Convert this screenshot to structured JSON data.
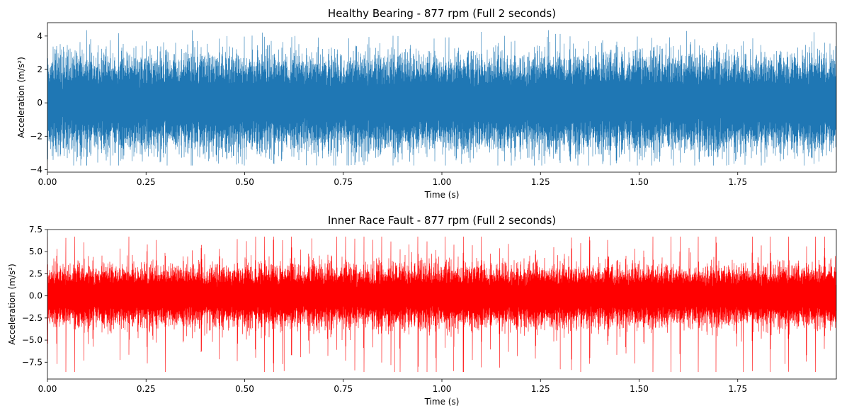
{
  "chart_data": [
    {
      "type": "line",
      "title": "Healthy Bearing - 877 rpm (Full 2 seconds)",
      "xlabel": "Time (s)",
      "ylabel": "Acceleration (m/s²)",
      "xlim": [
        0,
        2.0
      ],
      "ylim": [
        -4.15,
        4.8
      ],
      "x_ticks": [
        0.0,
        0.25,
        0.5,
        0.75,
        1.0,
        1.25,
        1.5,
        1.75
      ],
      "x_tick_labels": [
        "0.00",
        "0.25",
        "0.50",
        "0.75",
        "1.00",
        "1.25",
        "1.50",
        "1.75"
      ],
      "y_ticks": [
        -4,
        -2,
        0,
        2,
        4
      ],
      "y_tick_labels": [
        "−4",
        "−2",
        "0",
        "2",
        "4"
      ],
      "grid": false,
      "series": [
        {
          "color": "#1f77b4",
          "signal": {
            "duration_s": 2.0,
            "envelope_typical": [
              -2.2,
              2.2
            ],
            "peak_max": 4.35,
            "peak_min": -3.75,
            "notable_peaks": [
              {
                "t": 0.1,
                "value": -3.75
              },
              {
                "t": 1.05,
                "value": -3.65
              },
              {
                "t": 1.1,
                "value": 4.25
              },
              {
                "t": 1.27,
                "value": 4.35
              },
              {
                "t": 1.62,
                "value": 4.3
              },
              {
                "t": 0.37,
                "value": 3.7
              },
              {
                "t": 1.97,
                "value": 3.6
              }
            ]
          }
        }
      ]
    },
    {
      "type": "line",
      "title": "Inner Race Fault - 877 rpm (Full 2 seconds)",
      "xlabel": "Time (s)",
      "ylabel": "Acceleration (m/s²)",
      "xlim": [
        0,
        2.0
      ],
      "ylim": [
        -9.4,
        7.5
      ],
      "x_ticks": [
        0.0,
        0.25,
        0.5,
        0.75,
        1.0,
        1.25,
        1.5,
        1.75
      ],
      "x_tick_labels": [
        "0.00",
        "0.25",
        "0.50",
        "0.75",
        "1.00",
        "1.25",
        "1.50",
        "1.75"
      ],
      "y_ticks": [
        -7.5,
        -5.0,
        -2.5,
        0.0,
        2.5,
        5.0,
        7.5
      ],
      "y_tick_labels": [
        "−7.5",
        "−5.0",
        "−2.5",
        "0.0",
        "2.5",
        "5.0",
        "7.5"
      ],
      "grid": false,
      "series": [
        {
          "color": "#ff0000",
          "signal": {
            "duration_s": 2.0,
            "envelope_typical": [
              -2.6,
              2.6
            ],
            "impulse_period_s": 0.0229,
            "peak_max": 6.7,
            "peak_min": -8.6,
            "notable_peaks": [
              {
                "t": 0.6,
                "value": -8.5
              },
              {
                "t": 0.88,
                "value": -8.6
              },
              {
                "t": 1.03,
                "value": -8.5
              },
              {
                "t": 1.3,
                "value": -8.3
              },
              {
                "t": 1.87,
                "value": -7.7
              },
              {
                "t": 0.67,
                "value": 6.5
              },
              {
                "t": 1.97,
                "value": 6.7
              }
            ]
          }
        }
      ]
    }
  ]
}
